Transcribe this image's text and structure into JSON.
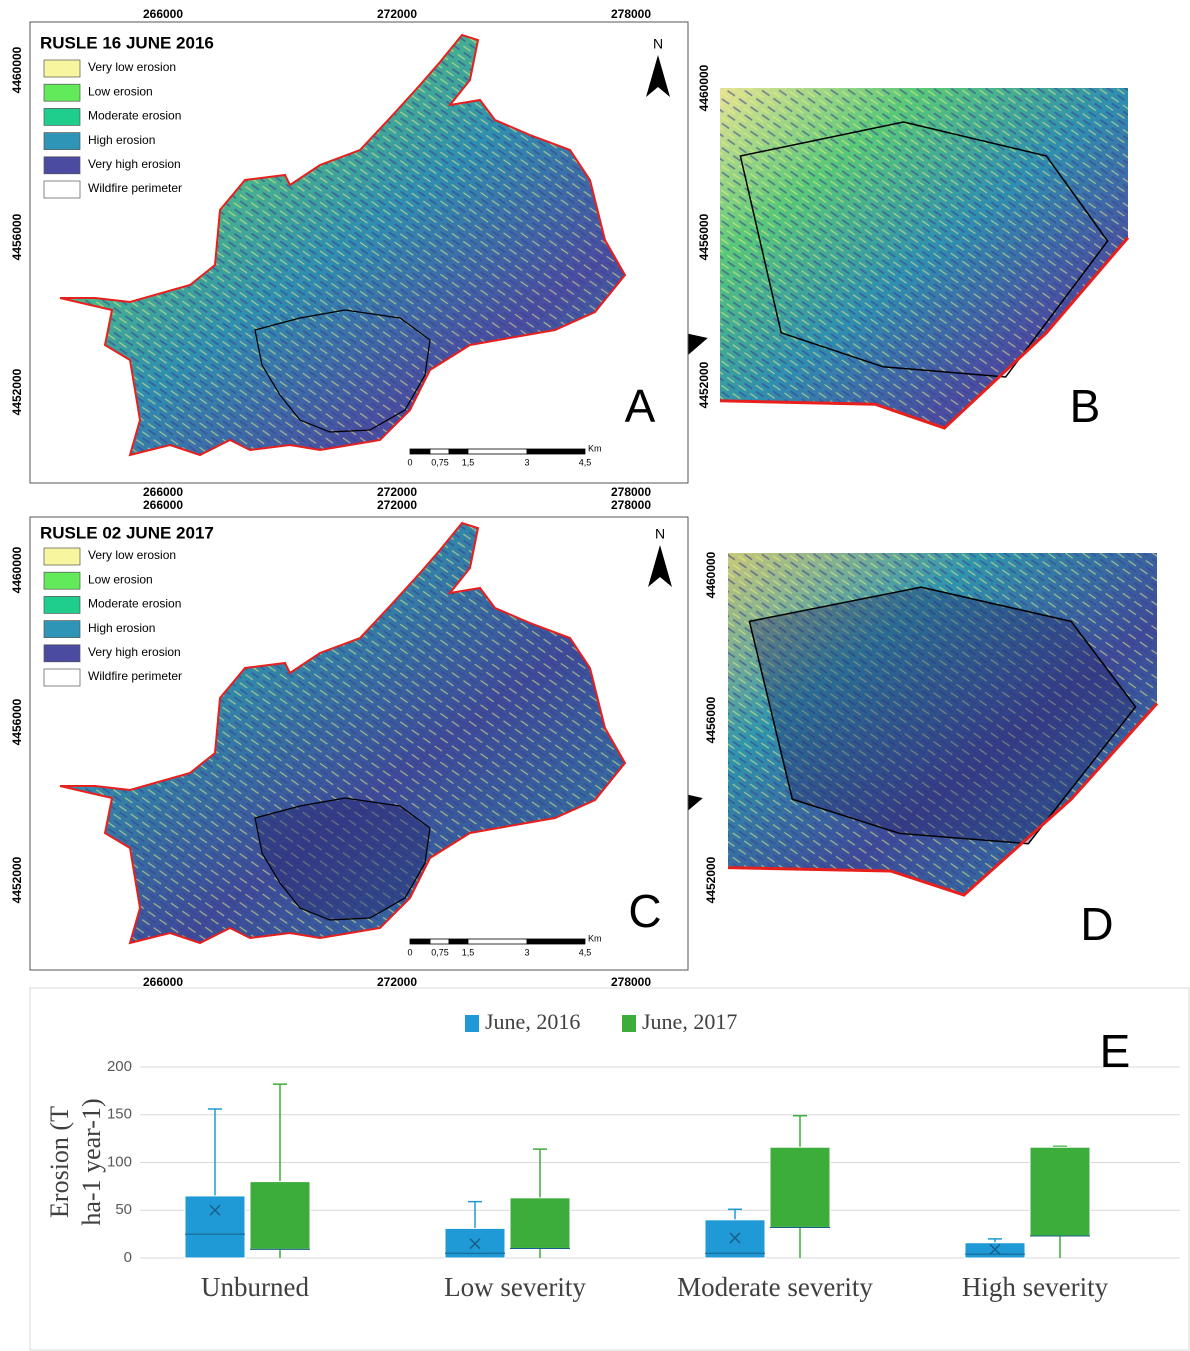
{
  "maps": [
    {
      "title": "RUSLE 16 JUNE 2016",
      "letter": "A",
      "north": "N",
      "legend": [
        {
          "label": "Very low erosion",
          "color": "#f7f59e"
        },
        {
          "label": "Low erosion",
          "color": "#63ea5a"
        },
        {
          "label": "Moderate erosion",
          "color": "#1fcd8c"
        },
        {
          "label": "High erosion",
          "color": "#2e95b7"
        },
        {
          "label": "Very high erosion",
          "color": "#4b4ba2"
        },
        {
          "label": "Wildfire perimeter",
          "color": "#ffffff"
        }
      ],
      "xticks": [
        266000,
        272000,
        278000
      ],
      "yticks": [
        4460000,
        4456000,
        4452000
      ],
      "scale_bar": {
        "labels": [
          "0",
          "0,75",
          "1,5",
          "3",
          "4,5"
        ],
        "unit": "Km"
      }
    },
    {
      "title": "RUSLE 02 JUNE 2017",
      "letter": "C",
      "north": "N",
      "legend": [
        {
          "label": "Very low erosion",
          "color": "#f7f59e"
        },
        {
          "label": "Low erosion",
          "color": "#63ea5a"
        },
        {
          "label": "Moderate erosion",
          "color": "#1fcd8c"
        },
        {
          "label": "High erosion",
          "color": "#2e95b7"
        },
        {
          "label": "Very high erosion",
          "color": "#4b4ba2"
        },
        {
          "label": "Wildfire perimeter",
          "color": "#ffffff"
        }
      ],
      "xticks": [
        266000,
        272000,
        278000
      ],
      "yticks": [
        4460000,
        4456000,
        4452000
      ],
      "scale_bar": {
        "labels": [
          "0",
          "0,75",
          "1,5",
          "3",
          "4,5"
        ],
        "unit": "Km"
      }
    }
  ],
  "insets": [
    {
      "letter": "B",
      "yticks": [
        4460000,
        4456000,
        4452000
      ]
    },
    {
      "letter": "D",
      "yticks": [
        4460000,
        4456000,
        4452000
      ]
    }
  ],
  "chart_data": {
    "type": "box",
    "letter": "E",
    "ylabel": [
      "Erosion (T",
      "ha-1 year-1)"
    ],
    "categories": [
      "Unburned",
      "Low severity",
      "Moderate severity",
      "High severity"
    ],
    "ylim": [
      0,
      200
    ],
    "yticks": [
      0,
      50,
      100,
      150,
      200
    ],
    "grid": true,
    "series": [
      {
        "name": "June, 2016",
        "color": "#1f9ad6",
        "min": [
          0,
          0,
          0,
          0
        ],
        "q1": [
          0,
          0,
          0,
          0
        ],
        "median": [
          25,
          5,
          5,
          4
        ],
        "q3": [
          65,
          31,
          40,
          16
        ],
        "max": [
          156,
          59,
          51,
          20
        ],
        "mean": [
          50,
          15,
          21,
          9
        ]
      },
      {
        "name": "June, 2017",
        "color": "#3cac3a",
        "min": [
          0,
          0,
          0,
          0
        ],
        "q1": [
          9,
          10,
          32,
          23
        ],
        "median": [
          9,
          10,
          32,
          23
        ],
        "q3": [
          80,
          63,
          116,
          116
        ],
        "max": [
          182,
          114,
          149,
          117
        ]
      }
    ]
  }
}
